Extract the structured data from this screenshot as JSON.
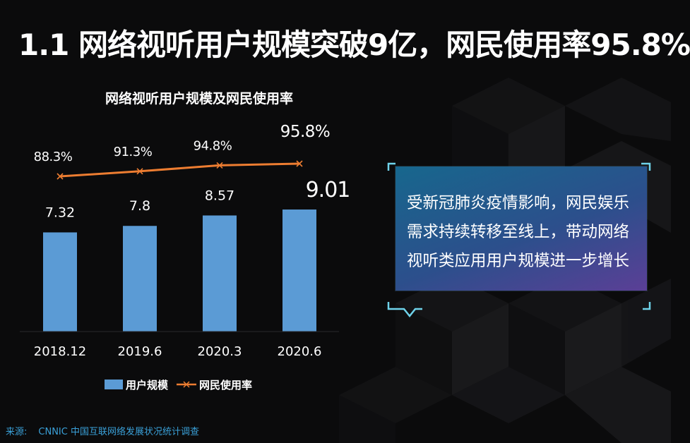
{
  "slide": {
    "title": "1.1 网络视听用户规模突破9亿，网民使用率95.8%",
    "callout_text": "受新冠肺炎疫情影响，网民娱乐需求持续转移至线上，带动网络视听类应用用户规模进一步增长",
    "source_label": "来源:",
    "source_text": "CNNIC 中国互联网络发展状况统计调查"
  },
  "colors": {
    "bar": "#5b9bd5",
    "line": "#ed7d31",
    "background": "#0b0b0c",
    "callout_gradient_start": "#17678d",
    "callout_gradient_end": "#5b3f96",
    "callout_frame": "#6fd3ea",
    "source": "#3aa0d8"
  },
  "chart_data": {
    "type": "bar",
    "title": "网络视听用户规模及网民使用率",
    "categories": [
      "2018.12",
      "2019.6",
      "2020.3",
      "2020.6"
    ],
    "series": [
      {
        "name": "用户规模",
        "type": "bar",
        "values": [
          7.32,
          7.8,
          8.57,
          9.01
        ],
        "labels": [
          "7.32",
          "7.8",
          "8.57",
          "9.01"
        ]
      },
      {
        "name": "网民使用率",
        "type": "line",
        "values": [
          88.3,
          91.3,
          94.8,
          95.8
        ],
        "labels": [
          "88.3%",
          "91.3%",
          "94.8%",
          "95.8%"
        ]
      }
    ],
    "ylim_bar": [
      0,
      10
    ],
    "ylim_line": [
      0,
      100
    ],
    "grid": false,
    "legend_position": "bottom"
  }
}
